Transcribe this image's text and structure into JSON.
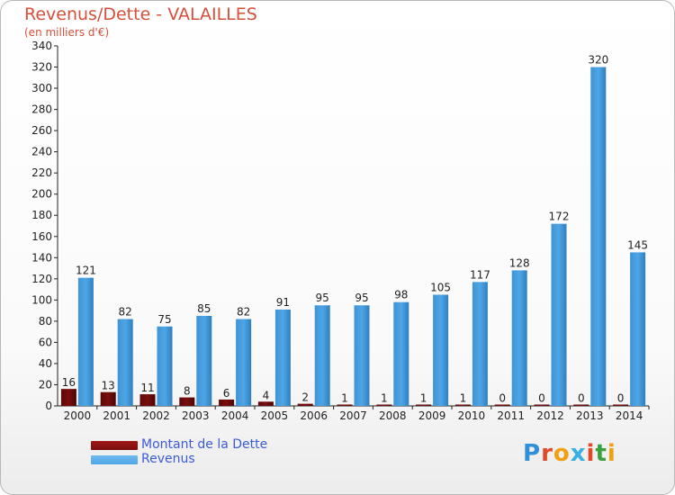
{
  "title": "Revenus/Dette - VALAILLES",
  "subtitle": "(en milliers d'€)",
  "colors": {
    "debt": "#7a0d0d",
    "revenue": "#4ea6e6",
    "axis": "#222222",
    "grid": "#cccccc"
  },
  "legend": {
    "debt_label": "Montant de la Dette",
    "revenue_label": "Revenus"
  },
  "logo": {
    "letters": [
      "P",
      "r",
      "o",
      "x",
      "i",
      "t",
      "i"
    ],
    "colors": [
      "#2f8fd8",
      "#e04a2a",
      "#f0a010",
      "#3ab0e0",
      "#e04a2a",
      "#3aa040",
      "#f0a010"
    ]
  },
  "chart_data": {
    "type": "bar",
    "categories": [
      "2000",
      "2001",
      "2002",
      "2003",
      "2004",
      "2005",
      "2006",
      "2007",
      "2008",
      "2009",
      "2010",
      "2011",
      "2012",
      "2013",
      "2014"
    ],
    "series": [
      {
        "name": "Montant de la Dette",
        "values": [
          16,
          13,
          11,
          8,
          6,
          4,
          2,
          1,
          1,
          1,
          1,
          0,
          0,
          0,
          0
        ]
      },
      {
        "name": "Revenus",
        "values": [
          121,
          82,
          75,
          85,
          82,
          91,
          95,
          95,
          98,
          105,
          117,
          128,
          172,
          320,
          145
        ]
      }
    ],
    "ylim": [
      0,
      340
    ],
    "yticks": [
      0,
      20,
      40,
      60,
      80,
      100,
      120,
      140,
      160,
      180,
      200,
      220,
      240,
      260,
      280,
      300,
      320,
      340
    ],
    "grid": false,
    "legend_position": "bottom-left"
  }
}
